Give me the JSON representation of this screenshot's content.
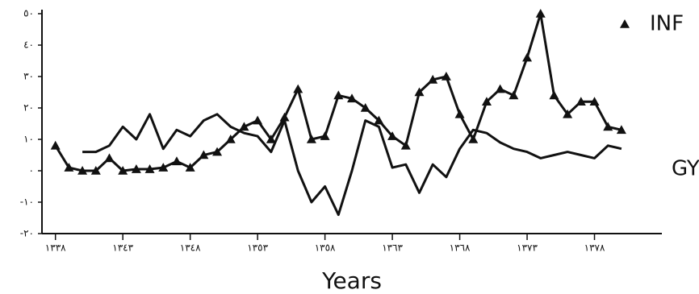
{
  "chart_data": {
    "type": "line",
    "x_label": "Years",
    "x": [
      1338,
      1339,
      1340,
      1341,
      1342,
      1343,
      1344,
      1345,
      1346,
      1347,
      1348,
      1349,
      1350,
      1351,
      1352,
      1353,
      1354,
      1355,
      1356,
      1357,
      1358,
      1359,
      1360,
      1361,
      1362,
      1363,
      1364,
      1365,
      1366,
      1367,
      1368,
      1369,
      1370,
      1371,
      1372,
      1373,
      1374,
      1375,
      1376,
      1377,
      1378,
      1379,
      1380
    ],
    "series": [
      {
        "name": "INF",
        "color": "#111111",
        "marker": "triangle",
        "values": [
          8,
          1,
          0,
          0,
          4,
          0,
          0.5,
          0.5,
          1,
          3,
          1,
          5,
          6,
          10,
          14,
          16,
          10,
          17,
          26,
          10,
          11,
          24,
          23,
          20,
          16,
          11,
          8,
          25,
          29,
          30,
          18,
          10,
          22,
          26,
          24,
          36,
          50,
          24,
          18,
          22,
          22,
          14,
          13
        ]
      },
      {
        "name": "GY",
        "color": "#111111",
        "marker": "none",
        "values": [
          null,
          null,
          6,
          6,
          8,
          14,
          10,
          18,
          7,
          13,
          11,
          16,
          18,
          14,
          12,
          11,
          6,
          16,
          0,
          -10,
          -5,
          -14,
          0,
          16,
          14,
          1,
          2,
          -7,
          2,
          -2,
          7,
          13,
          12,
          9,
          7,
          6,
          4,
          5,
          6,
          5,
          4,
          8,
          7
        ]
      }
    ],
    "xlim": [
      1337,
      1383
    ],
    "xticks": [
      {
        "value": 1338,
        "label": "١٣٣٨"
      },
      {
        "value": 1343,
        "label": "١٣٤٣"
      },
      {
        "value": 1348,
        "label": "١٣٤٨"
      },
      {
        "value": 1353,
        "label": "١٣٥٣"
      },
      {
        "value": 1358,
        "label": "١٣٥٨"
      },
      {
        "value": 1363,
        "label": "١٣٦٣"
      },
      {
        "value": 1368,
        "label": "١٣٦٨"
      },
      {
        "value": 1373,
        "label": "١٣٧٣"
      },
      {
        "value": 1378,
        "label": "١٣٧٨"
      }
    ],
    "ylim": [
      -20,
      50
    ],
    "yticks": [
      {
        "value": -20,
        "label": "-٢٠"
      },
      {
        "value": -10,
        "label": "-١٠"
      },
      {
        "value": 0,
        "label": "٠"
      },
      {
        "value": 10,
        "label": "١٠"
      },
      {
        "value": 20,
        "label": "٢٠"
      },
      {
        "value": 30,
        "label": "٣٠"
      },
      {
        "value": 40,
        "label": "٤٠"
      },
      {
        "value": 50,
        "label": "٥٠"
      }
    ],
    "grid": false
  }
}
